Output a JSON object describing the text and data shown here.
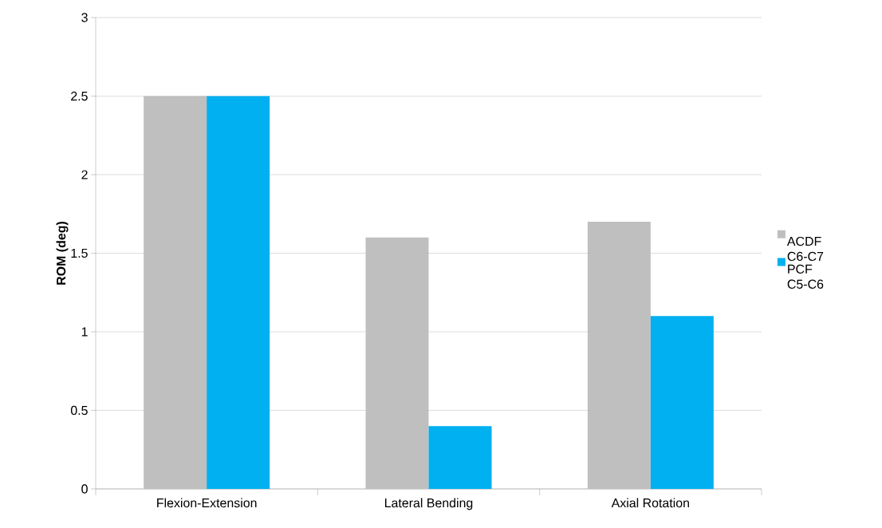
{
  "chart_data": {
    "type": "bar",
    "ylabel": "ROM (deg)",
    "categories": [
      "Flexion-Extension",
      "Lateral Bending",
      "Axial Rotation"
    ],
    "series": [
      {
        "name": "ACDF C6-C7",
        "color": "#bfbfbf",
        "values": [
          2.5,
          1.6,
          1.7
        ]
      },
      {
        "name": "PCF C5-C6",
        "color": "#00b0f0",
        "values": [
          2.5,
          0.4,
          1.1
        ]
      }
    ],
    "ylim": [
      0,
      3
    ],
    "yticks": [
      0,
      0.5,
      1,
      1.5,
      2,
      2.5,
      3
    ],
    "grid": "y",
    "legend": "right"
  }
}
